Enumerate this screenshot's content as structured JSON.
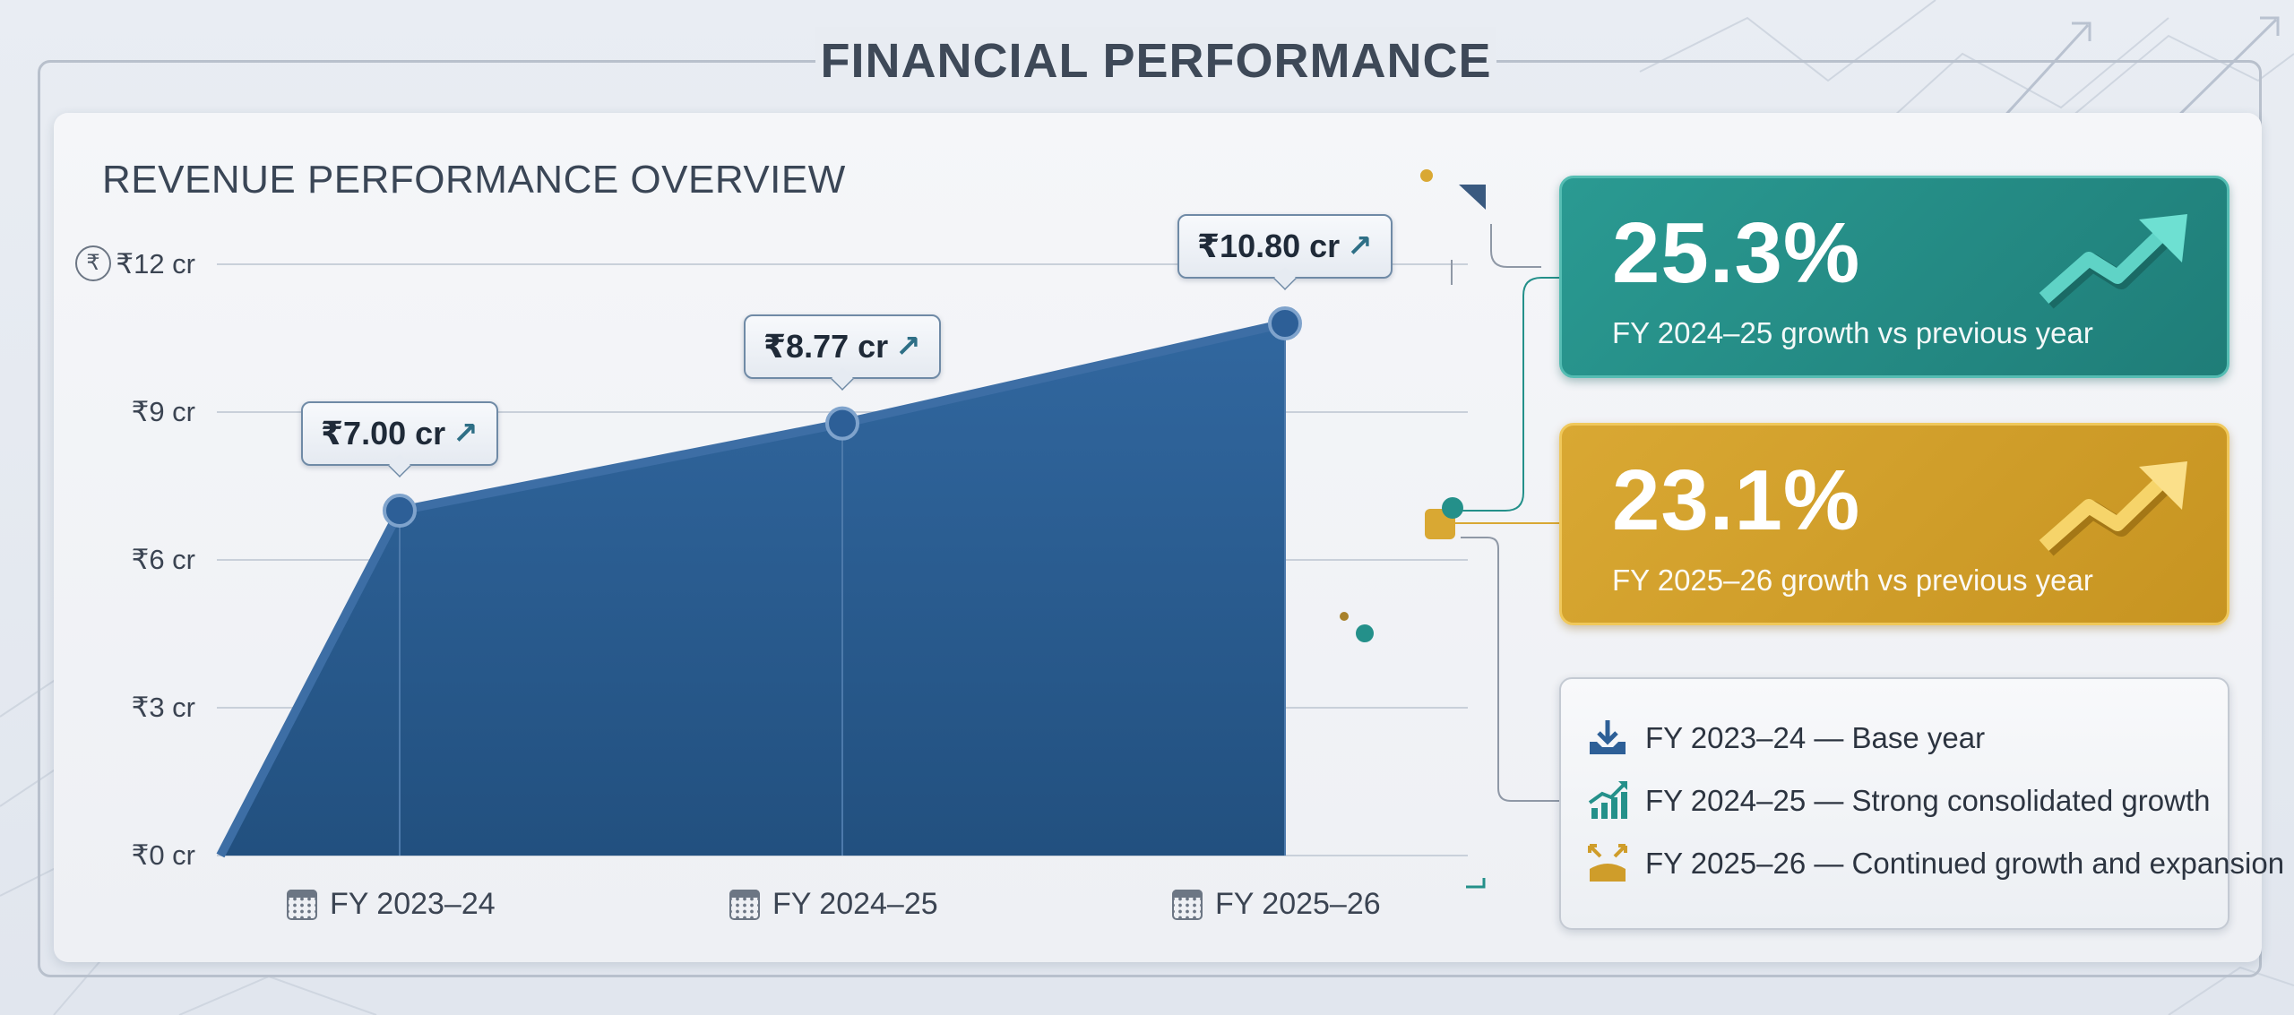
{
  "page_title": "FINANCIAL PERFORMANCE",
  "chart_title": "REVENUE PERFORMANCE OVERVIEW",
  "chart_data": {
    "type": "area",
    "title": "REVENUE PERFORMANCE OVERVIEW",
    "categories": [
      "FY 2023–24",
      "FY 2024–25",
      "FY 2025–26"
    ],
    "y_ticks": [
      "₹0 cr",
      "₹3 cr",
      "₹6 cr",
      "₹9 cr",
      "₹12 cr"
    ],
    "ylim": [
      0,
      12
    ],
    "series": [
      {
        "values": [
          7.0,
          8.77,
          10.8
        ],
        "color": "#2d5f97"
      }
    ],
    "point_labels": [
      "₹7.00 cr",
      "₹8.77 cr",
      "₹10.80 cr"
    ],
    "grid": true
  },
  "kpis": [
    {
      "value": "25.3%",
      "label": "FY 2024–25 growth vs previous year",
      "color": "#24908a",
      "icon": "trend-up-arrow-icon"
    },
    {
      "value": "23.1%",
      "label": "FY 2025–26 growth vs previous year",
      "color": "#cf9d2a",
      "icon": "trend-up-arrow-icon"
    }
  ],
  "legend": [
    {
      "text": "FY 2023–24 — Base year",
      "icon": "download-tray-icon",
      "color": "#2d5f97"
    },
    {
      "text": "FY 2024–25 — Strong consolidated growth",
      "icon": "bar-chart-growth-icon",
      "color": "#24908a"
    },
    {
      "text": "FY 2025–26 — Continued growth and expansion",
      "icon": "expand-arrows-icon",
      "color": "#cf9d2a"
    }
  ]
}
